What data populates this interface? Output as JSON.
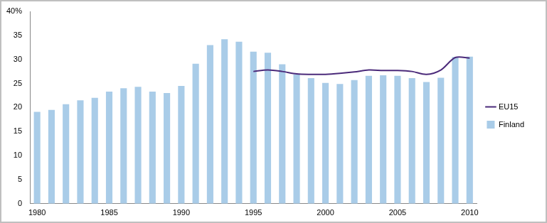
{
  "chart_data": {
    "type": "bar",
    "categories": [
      1980,
      null,
      null,
      null,
      null,
      1985,
      null,
      null,
      null,
      null,
      1990,
      null,
      null,
      null,
      null,
      1995,
      null,
      null,
      null,
      null,
      2000,
      null,
      null,
      null,
      null,
      2005,
      null,
      null,
      null,
      null,
      2010
    ],
    "series": [
      {
        "name": "Finland",
        "type": "bar",
        "color": "#a9cce8",
        "values": [
          19.1,
          19.5,
          20.7,
          21.5,
          22.0,
          23.3,
          24.0,
          24.3,
          23.3,
          23.0,
          24.5,
          29.1,
          33.0,
          34.2,
          33.7,
          31.6,
          31.4,
          29.0,
          26.9,
          26.1,
          25.1,
          24.9,
          25.7,
          26.6,
          26.7,
          26.6,
          26.1,
          25.3,
          26.2,
          30.5,
          30.6
        ]
      },
      {
        "name": "EU15",
        "type": "line",
        "color": "#4b2a7a",
        "values": [
          null,
          null,
          null,
          null,
          null,
          null,
          null,
          null,
          null,
          null,
          null,
          null,
          null,
          null,
          null,
          27.5,
          27.8,
          27.5,
          27.0,
          26.9,
          26.9,
          27.1,
          27.4,
          27.8,
          27.7,
          27.7,
          27.5,
          26.9,
          27.8,
          30.4,
          30.3
        ]
      }
    ],
    "ylim": [
      0,
      40
    ],
    "yticks": [
      0,
      5,
      10,
      15,
      20,
      25,
      30,
      35,
      {
        "value": 40,
        "label": "40%"
      }
    ],
    "grid": false,
    "legend": "right"
  }
}
